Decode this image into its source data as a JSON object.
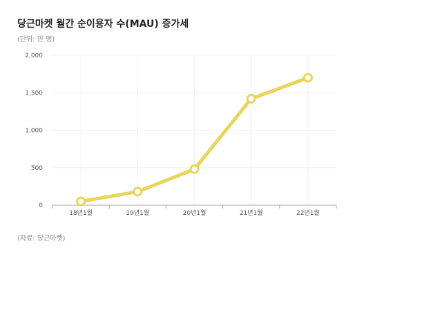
{
  "header": {
    "title": "당근마켓 월간 순이용자 수(MAU) 증가세",
    "unit_note": "(단위: 만 명)"
  },
  "footer": {
    "source": "(자료: 당근마켓)"
  },
  "chart_data": {
    "type": "line",
    "title": "당근마켓 월간 순이용자 수(MAU) 증가세",
    "xlabel": "",
    "ylabel": "",
    "categories": [
      "18년1월",
      "19년1월",
      "20년1월",
      "21년1월",
      "22년1월"
    ],
    "series": [
      {
        "values": [
          50,
          180,
          480,
          1420,
          1700
        ]
      }
    ],
    "ylim": [
      0,
      2000
    ],
    "yticks": [
      0,
      500,
      1000,
      1500,
      2000
    ],
    "ytick_labels": [
      "0",
      "500",
      "1,000",
      "1,500",
      "2,000"
    ],
    "grid": true,
    "legend": "none",
    "colors": {
      "line": "#e8d55a",
      "marker_fill": "#ffffff",
      "grid": "#f0f0f0",
      "axis": "#aaaaaa"
    }
  }
}
